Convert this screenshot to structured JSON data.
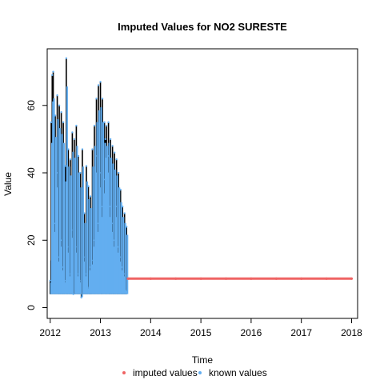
{
  "chart_data": {
    "type": "line",
    "title": "Imputed Values for  NO2 SURESTE",
    "xlabel": "Time",
    "ylabel": "Value",
    "xlim": [
      2012.0,
      2018.0
    ],
    "ylim": [
      0,
      72
    ],
    "x_ticks": [
      2012,
      2013,
      2014,
      2015,
      2016,
      2017,
      2018
    ],
    "x_tick_labels": [
      "2012",
      "2013",
      "2014",
      "2015",
      "2016",
      "2017",
      "2018"
    ],
    "y_ticks": [
      0,
      20,
      40,
      60
    ],
    "y_tick_labels": [
      "0",
      "20",
      "40",
      "60"
    ],
    "grid": false,
    "legend_position": "bottom",
    "series": [
      {
        "name": "imputed values",
        "color": "#ef6464",
        "style": "points",
        "x": [
          2013.55,
          2014.0,
          2014.5,
          2015.0,
          2015.5,
          2016.0,
          2016.5,
          2017.0,
          2017.5,
          2018.0
        ],
        "y": [
          8.6,
          8.6,
          8.6,
          8.6,
          8.6,
          8.6,
          8.6,
          8.6,
          8.6,
          8.6
        ]
      },
      {
        "name": "known values",
        "color": "#63aef0",
        "style": "points",
        "x": [
          2012.0,
          2012.02,
          2012.04,
          2012.06,
          2012.08,
          2012.1,
          2012.12,
          2012.14,
          2012.16,
          2012.18,
          2012.2,
          2012.22,
          2012.24,
          2012.26,
          2012.28,
          2012.3,
          2012.32,
          2012.34,
          2012.36,
          2012.38,
          2012.4,
          2012.42,
          2012.44,
          2012.46,
          2012.48,
          2012.5,
          2012.52,
          2012.54,
          2012.56,
          2012.58,
          2012.6,
          2012.62,
          2012.64,
          2012.66,
          2012.68,
          2012.7,
          2012.72,
          2012.74,
          2012.76,
          2012.78,
          2012.8,
          2012.82,
          2012.84,
          2012.86,
          2012.88,
          2012.9,
          2012.92,
          2012.94,
          2012.96,
          2012.98,
          2013.0,
          2013.02,
          2013.04,
          2013.06,
          2013.08,
          2013.1,
          2013.12,
          2013.14,
          2013.16,
          2013.18,
          2013.2,
          2013.22,
          2013.24,
          2013.26,
          2013.28,
          2013.3,
          2013.32,
          2013.34,
          2013.36,
          2013.38,
          2013.4,
          2013.42,
          2013.44,
          2013.46,
          2013.48,
          2013.5,
          2013.52
        ],
        "y": [
          8,
          55,
          69,
          70,
          25,
          57,
          40,
          63,
          15,
          60,
          20,
          58,
          12,
          55,
          8,
          42,
          74,
          18,
          47,
          10,
          44,
          23,
          52,
          4,
          50,
          18,
          54,
          10,
          45,
          8,
          40,
          3,
          47,
          15,
          28,
          10,
          42,
          6,
          36,
          12,
          33,
          14,
          47,
          20,
          54,
          45,
          62,
          25,
          66,
          40,
          67,
          30,
          62,
          38,
          55,
          50,
          54,
          45,
          55,
          30,
          50,
          25,
          48,
          20,
          46,
          30,
          44,
          18,
          40,
          15,
          35,
          12,
          30,
          10,
          28,
          5,
          24
        ]
      }
    ]
  }
}
